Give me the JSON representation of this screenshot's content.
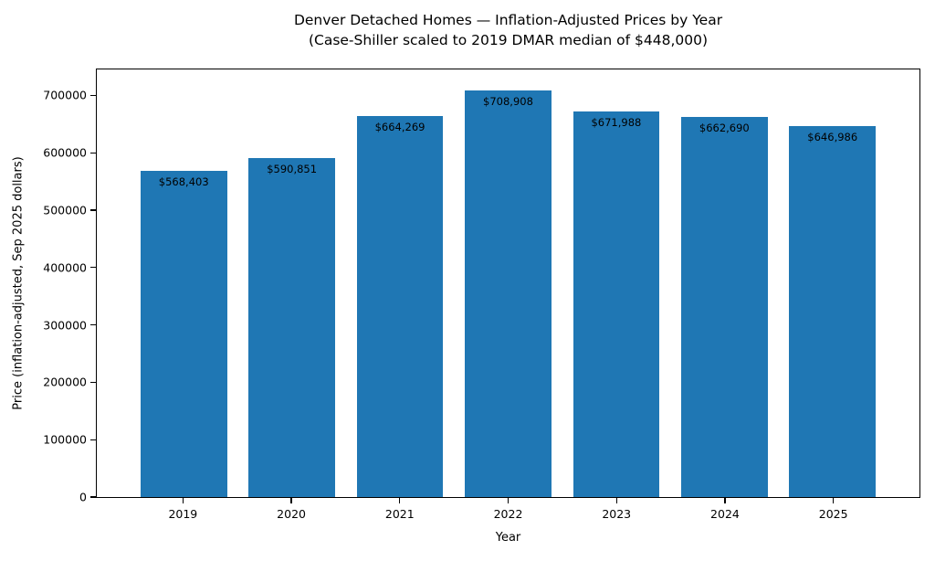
{
  "chart_data": {
    "type": "bar",
    "title_line1": "Denver Detached Homes — Inflation-Adjusted Prices by Year",
    "title_line2": "(Case-Shiller scaled to 2019 DMAR median of $448,000)",
    "xlabel": "Year",
    "ylabel": "Price (inflation-adjusted, Sep 2025 dollars)",
    "categories": [
      "2019",
      "2020",
      "2021",
      "2022",
      "2023",
      "2024",
      "2025"
    ],
    "values": [
      568403,
      590851,
      664269,
      708908,
      671988,
      662690,
      646986
    ],
    "bar_labels": [
      "$568,403",
      "$590,851",
      "$664,269",
      "$708,908",
      "$671,988",
      "$662,690",
      "$646,986"
    ],
    "yticks": [
      0,
      100000,
      200000,
      300000,
      400000,
      500000,
      600000,
      700000
    ],
    "ytick_labels": [
      "0",
      "100000",
      "200000",
      "300000",
      "400000",
      "500000",
      "600000",
      "700000"
    ],
    "ylim": [
      0,
      745000
    ],
    "bar_color": "#1f77b4",
    "axis_color": "#000000",
    "grid": false,
    "legend": "none"
  }
}
